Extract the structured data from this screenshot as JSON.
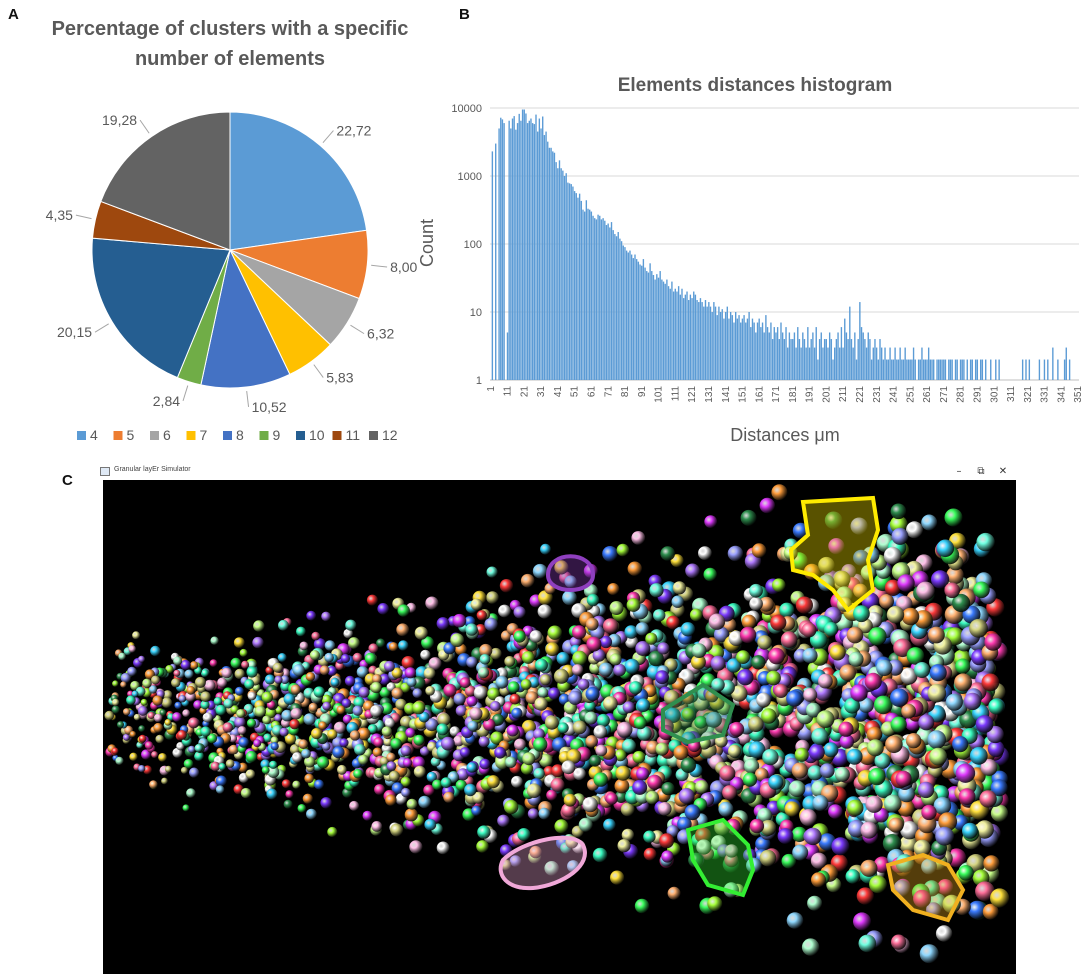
{
  "panels": {
    "a": "A",
    "b": "B",
    "c": "C"
  },
  "chart_data": [
    {
      "type": "pie",
      "title": "Percentage of clusters with a specific number of elements",
      "title_lines": [
        "Percentage of clusters with a specific",
        "number of elements"
      ],
      "categories": [
        "4",
        "5",
        "6",
        "7",
        "8",
        "9",
        "10",
        "11",
        "12"
      ],
      "values": [
        22.72,
        8.0,
        6.32,
        5.83,
        10.52,
        2.84,
        20.15,
        4.35,
        19.28
      ],
      "value_labels": [
        "22,72",
        "8,00",
        "6,32",
        "5,83",
        "10,52",
        "2,84",
        "20,15",
        "4,35",
        "19,28"
      ],
      "colors": [
        "#5b9bd5",
        "#ed7d31",
        "#a5a5a5",
        "#ffc000",
        "#4472c4",
        "#70ad47",
        "#255e91",
        "#9e480e",
        "#636363"
      ],
      "legend": "bottom"
    },
    {
      "type": "bar",
      "title": "Elements distances histogram",
      "xlabel": "Distances μm",
      "ylabel": "Count",
      "y_scale": "log",
      "ylim": [
        1,
        10000
      ],
      "y_ticks": [
        "1",
        "10",
        "100",
        "1000",
        "10000"
      ],
      "x_ticks": [
        "1",
        "11",
        "21",
        "31",
        "41",
        "51",
        "61",
        "71",
        "81",
        "91",
        "101",
        "111",
        "121",
        "131",
        "141",
        "151",
        "161",
        "171",
        "181",
        "191",
        "201",
        "211",
        "221",
        "231",
        "241",
        "251",
        "261",
        "271",
        "281",
        "291",
        "301",
        "311",
        "321",
        "331",
        "341",
        "351"
      ],
      "color": "#5b9bd5",
      "grid": true,
      "x": [
        1,
        351
      ],
      "values_by_decade": {
        "1-10": [
          0,
          2300,
          0,
          3000,
          0,
          5000,
          7200,
          6800,
          6000,
          0
        ],
        "11-20": [
          5,
          6500,
          5000,
          7000,
          7600,
          4800,
          6000,
          8200,
          6500,
          9500
        ],
        "21-30": [
          9500,
          8300,
          6000,
          6500,
          7000,
          6000,
          5800,
          8000,
          4500,
          7000
        ],
        "31-40": [
          5000,
          7500,
          4000,
          4500,
          3200,
          2600,
          2600,
          2300,
          2200,
          1600
        ],
        "41-50": [
          1300,
          1700,
          1300,
          1200,
          1000,
          1100,
          800,
          780,
          760,
          700
        ],
        "51-60": [
          600,
          560,
          480,
          550,
          430,
          320,
          300,
          440,
          330,
          320
        ],
        "61-70": [
          300,
          260,
          240,
          230,
          270,
          260,
          230,
          240,
          220,
          190
        ],
        "71-80": [
          200,
          175,
          210,
          160,
          140,
          130,
          150,
          120,
          110,
          95
        ],
        "81-90": [
          90,
          80,
          75,
          80,
          70,
          62,
          70,
          60,
          55,
          50
        ],
        "91-100": [
          48,
          60,
          45,
          40,
          38,
          52,
          40,
          35,
          30,
          36
        ],
        "101-110": [
          32,
          40,
          30,
          28,
          26,
          30,
          24,
          22,
          28,
          20
        ],
        "111-120": [
          22,
          20,
          24,
          18,
          22,
          16,
          18,
          20,
          15,
          18
        ],
        "121-130": [
          16,
          20,
          18,
          15,
          14,
          16,
          14,
          12,
          15,
          12
        ],
        "131-140": [
          14,
          12,
          10,
          14,
          12,
          9,
          12,
          10,
          11,
          8
        ],
        "141-150": [
          10,
          12,
          8,
          10,
          9,
          7,
          10,
          8,
          9,
          7
        ],
        "151-160": [
          8,
          9,
          7,
          8,
          10,
          6,
          8,
          7,
          5,
          7
        ],
        "161-170": [
          8,
          6,
          7,
          5,
          9,
          6,
          5,
          7,
          4,
          6
        ],
        "171-180": [
          5,
          6,
          4,
          7,
          5,
          4,
          6,
          3,
          5,
          4
        ],
        "181-190": [
          4,
          5,
          3,
          6,
          4,
          3,
          5,
          4,
          3,
          6
        ],
        "191-200": [
          3,
          4,
          5,
          3,
          6,
          2,
          4,
          5,
          3,
          4
        ],
        "201-210": [
          4,
          3,
          5,
          4,
          2,
          3,
          4,
          5,
          3,
          6
        ],
        "211-220": [
          3,
          8,
          5,
          4,
          12,
          4,
          3,
          5,
          2,
          4
        ],
        "221-230": [
          14,
          6,
          5,
          4,
          3,
          5,
          4,
          2,
          3,
          4
        ],
        "231-240": [
          3,
          2,
          4,
          3,
          2,
          3,
          2,
          2,
          3,
          2
        ],
        "241-250": [
          2,
          3,
          2,
          2,
          3,
          2,
          2,
          3,
          2,
          2
        ],
        "251-260": [
          2,
          2,
          3,
          2,
          0,
          2,
          2,
          3,
          2,
          2
        ],
        "261-270": [
          2,
          3,
          2,
          2,
          2,
          0,
          2,
          2,
          2,
          2
        ],
        "271-280": [
          2,
          2,
          0,
          2,
          2,
          2,
          0,
          2,
          2,
          0
        ],
        "281-290": [
          2,
          2,
          2,
          0,
          2,
          0,
          2,
          2,
          0,
          2
        ],
        "291-300": [
          2,
          0,
          2,
          2,
          0,
          2,
          0,
          0,
          2,
          0
        ],
        "301-310": [
          0,
          2,
          0,
          2,
          0,
          0,
          0,
          0,
          0,
          0
        ],
        "311-320": [
          0,
          0,
          0,
          0,
          0,
          0,
          0,
          2,
          0,
          2
        ],
        "321-330": [
          0,
          2,
          0,
          0,
          0,
          0,
          0,
          2,
          0,
          0
        ],
        "331-340": [
          2,
          0,
          2,
          0,
          0,
          3,
          0,
          0,
          2,
          0
        ],
        "341-350": [
          0,
          0,
          2,
          3,
          0,
          2,
          0,
          0,
          0,
          0
        ]
      }
    }
  ],
  "simulator": {
    "window_title": "Granular layEr Simulator",
    "minimize_glyph": "–",
    "maximize_glyph": "⧉",
    "close_glyph": "✕",
    "background_color": "#000000",
    "highlight_colors": [
      "#ffeb00",
      "#8f3fbf",
      "#2f8f4f",
      "#33ee33",
      "#f0b020",
      "#f0a8d8"
    ]
  }
}
